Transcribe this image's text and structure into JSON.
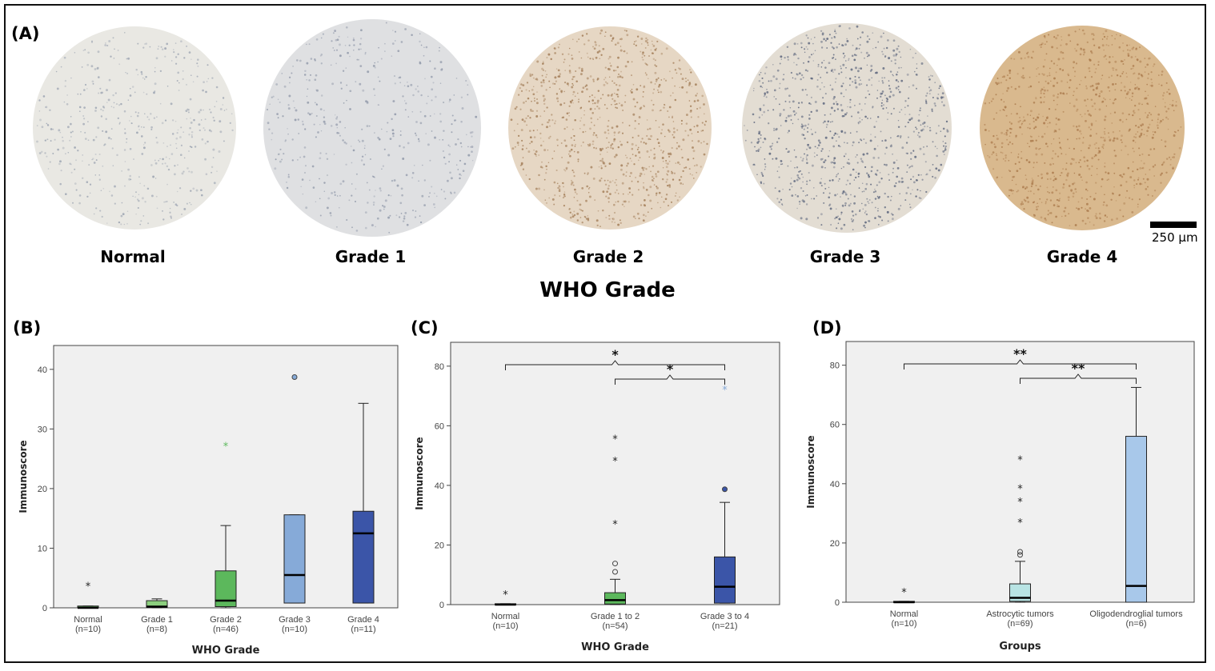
{
  "panels": {
    "a": "(A)",
    "b": "(B)",
    "c": "(C)",
    "d": "(D)"
  },
  "tissue_cores": [
    {
      "label": "Normal",
      "fill": "#e9e8e3",
      "dots": "#9aa2b0"
    },
    {
      "label": "Grade 1",
      "fill": "#dfe0e2",
      "dots": "#8f97a8"
    },
    {
      "label": "Grade 2",
      "fill": "#e6d7c4",
      "dots": "#a07a54"
    },
    {
      "label": "Grade 3",
      "fill": "#e3ddd3",
      "dots": "#58627a"
    },
    {
      "label": "Grade 4",
      "fill": "#d9b98e",
      "dots": "#a9784a"
    }
  ],
  "who_grade_title": "WHO Grade",
  "scale_bar": "250 µm",
  "chart_data": [
    {
      "type": "box",
      "title": "(B)",
      "xlabel": "WHO Grade",
      "ylabel": "Immunoscore",
      "ylim": [
        0,
        44
      ],
      "yticks": [
        0,
        10,
        20,
        30,
        40
      ],
      "categories": [
        "Normal",
        "Grade 1",
        "Grade 2",
        "Grade 3",
        "Grade 4"
      ],
      "counts": [
        "(n=10)",
        "(n=8)",
        "(n=46)",
        "(n=10)",
        "(n=11)"
      ],
      "boxes": [
        {
          "min": 0,
          "q1": 0,
          "median": 0,
          "q3": 0.3,
          "max": 0.3,
          "color": "#5aa05a",
          "outliers": [],
          "extremes": [
            3.8
          ],
          "extreme_color": "#222222"
        },
        {
          "min": 0,
          "q1": 0.1,
          "median": 0.2,
          "q3": 1.2,
          "max": 1.5,
          "color": "#8ccf7e",
          "outliers": [],
          "extremes": [],
          "extreme_color": "#222222"
        },
        {
          "min": 0,
          "q1": 0.2,
          "median": 1.2,
          "q3": 6.2,
          "max": 13.8,
          "color": "#5cb85c",
          "outliers": [],
          "extremes": [
            27.3
          ],
          "extreme_color": "#5cb85c"
        },
        {
          "min": 0.8,
          "q1": 0.8,
          "median": 5.5,
          "q3": 15.6,
          "max": 15.6,
          "color": "#86aad8",
          "outliers": [
            38.7
          ],
          "extremes": [],
          "extreme_color": "#222222"
        },
        {
          "min": 0.8,
          "q1": 0.8,
          "median": 12.5,
          "q3": 16.2,
          "max": 34.3,
          "color": "#3b55a8",
          "outliers": [],
          "extremes": [],
          "extreme_color": "#222222"
        }
      ],
      "significance": []
    },
    {
      "type": "box",
      "title": "(C)",
      "xlabel": "WHO Grade",
      "ylabel": "Immunoscore",
      "ylim": [
        0,
        88
      ],
      "yticks": [
        0,
        20,
        40,
        60,
        80
      ],
      "categories": [
        "Normal",
        "Grade 1 to 2",
        "Grade 3 to 4"
      ],
      "counts": [
        "(n=10)",
        "(n=54)",
        "(n=21)"
      ],
      "boxes": [
        {
          "min": 0,
          "q1": 0,
          "median": 0,
          "q3": 0.3,
          "max": 0.3,
          "color": "#5aa05a",
          "outliers": [],
          "extremes": [
            3.8
          ],
          "extreme_color": "#222222"
        },
        {
          "min": 0,
          "q1": 0.2,
          "median": 1.5,
          "q3": 4,
          "max": 8.5,
          "color": "#5cb85c",
          "outliers": [
            11,
            13.8
          ],
          "extremes": [
            27.3,
            48.5,
            56
          ],
          "extreme_color": "#222222"
        },
        {
          "min": 0.5,
          "q1": 0.5,
          "median": 6,
          "q3": 16,
          "max": 34.3,
          "color": "#3b55a8",
          "outliers": [
            38.7
          ],
          "extremes": [
            72.5
          ],
          "extreme_color": "#86aad8"
        }
      ],
      "significance": [
        {
          "from": 0,
          "to": 2,
          "label": "*"
        },
        {
          "from": 1,
          "to": 2,
          "label": "*"
        }
      ]
    },
    {
      "type": "box",
      "title": "(D)",
      "xlabel": "Groups",
      "ylabel": "Immunoscore",
      "ylim": [
        0,
        88
      ],
      "yticks": [
        0,
        20,
        40,
        60,
        80
      ],
      "categories": [
        "Normal",
        "Astrocytic tumors",
        "Oligodendroglial tumors"
      ],
      "counts": [
        "(n=10)",
        "(n=69)",
        "(n=6)"
      ],
      "boxes": [
        {
          "min": 0,
          "q1": 0,
          "median": 0,
          "q3": 0.3,
          "max": 0.3,
          "color": "#5aa05a",
          "outliers": [],
          "extremes": [
            3.8
          ],
          "extreme_color": "#222222"
        },
        {
          "min": 0,
          "q1": 0.3,
          "median": 1.5,
          "q3": 6.2,
          "max": 13.8,
          "color": "#b8e4e4",
          "outliers": [
            16,
            17
          ],
          "extremes": [
            27.3,
            34.3,
            38.7,
            48.5
          ],
          "extreme_color": "#222222"
        },
        {
          "min": 0,
          "q1": 0,
          "median": 5.5,
          "q3": 56,
          "max": 72.5,
          "color": "#a8c8ea",
          "outliers": [],
          "extremes": [],
          "extreme_color": "#222222"
        }
      ],
      "significance": [
        {
          "from": 0,
          "to": 2,
          "label": "**"
        },
        {
          "from": 1,
          "to": 2,
          "label": "**"
        }
      ]
    }
  ]
}
